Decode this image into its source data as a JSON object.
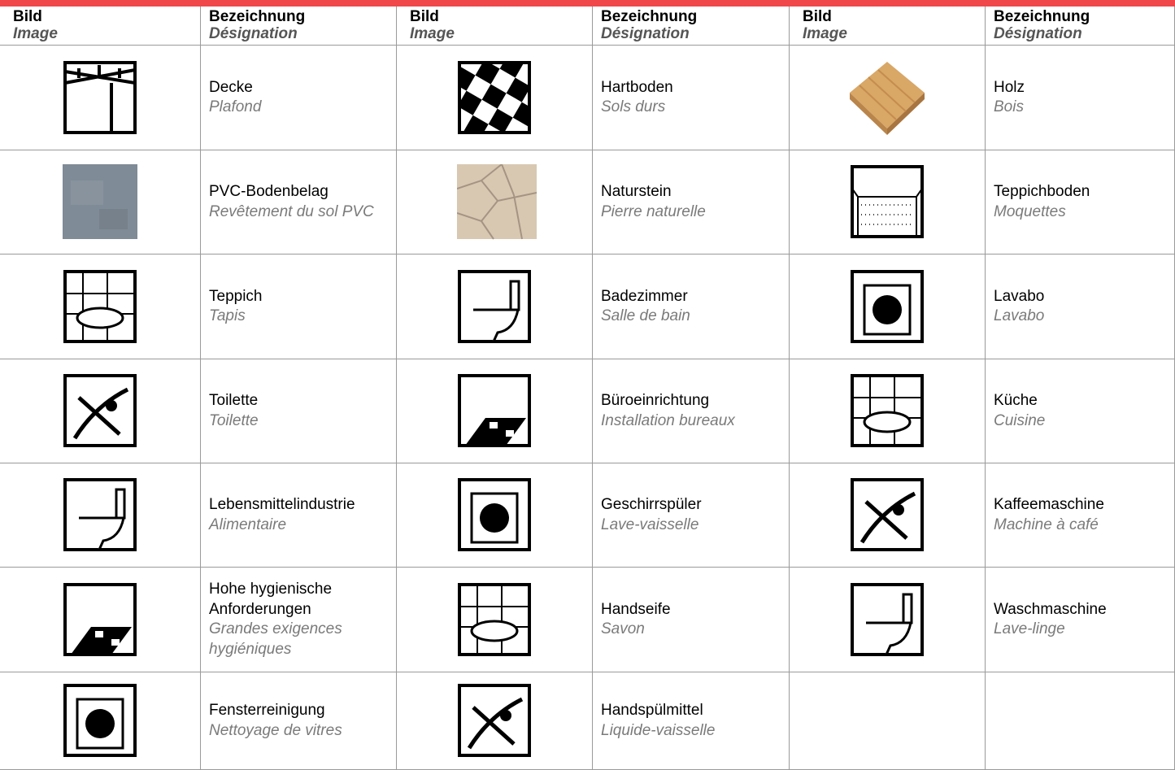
{
  "header": {
    "image_de": "Bild",
    "image_fr": "Image",
    "name_de": "Bezeichnung",
    "name_fr": "Désignation"
  },
  "rows": [
    [
      {
        "de": "Decke",
        "fr": "Plafond"
      },
      {
        "de": "Hartboden",
        "fr": "Sols durs"
      },
      {
        "de": "Holz",
        "fr": "Bois"
      }
    ],
    [
      {
        "de": "PVC-Bodenbelag",
        "fr": "Revêtement du sol PVC"
      },
      {
        "de": "Naturstein",
        "fr": "Pierre naturelle"
      },
      {
        "de": "Teppichboden",
        "fr": "Moquettes"
      }
    ],
    [
      {
        "de": "Teppich",
        "fr": "Tapis"
      },
      {
        "de": "Badezimmer",
        "fr": "Salle de bain"
      },
      {
        "de": "Lavabo",
        "fr": "Lavabo"
      }
    ],
    [
      {
        "de": "Toilette",
        "fr": "Toilette"
      },
      {
        "de": "Büroeinrichtung",
        "fr": "Installation bureaux"
      },
      {
        "de": "Küche",
        "fr": "Cuisine"
      }
    ],
    [
      {
        "de": "Lebensmittelindustrie",
        "fr": "Alimentaire"
      },
      {
        "de": "Geschirrspüler",
        "fr": "Lave-vaisselle"
      },
      {
        "de": "Kaffeemaschine",
        "fr": "Machine à café"
      }
    ],
    [
      {
        "de": "Hohe hygienische Anforderungen",
        "fr": "Grandes exigences hygiéniques"
      },
      {
        "de": "Handseife",
        "fr": "Savon"
      },
      {
        "de": "Waschmaschine",
        "fr": "Lave-linge"
      }
    ],
    [
      {
        "de": "Fensterreinigung",
        "fr": "Nettoyage de vitres"
      },
      {
        "de": "Handspülmittel",
        "fr": "Liquide-vaisselle"
      }
    ]
  ]
}
